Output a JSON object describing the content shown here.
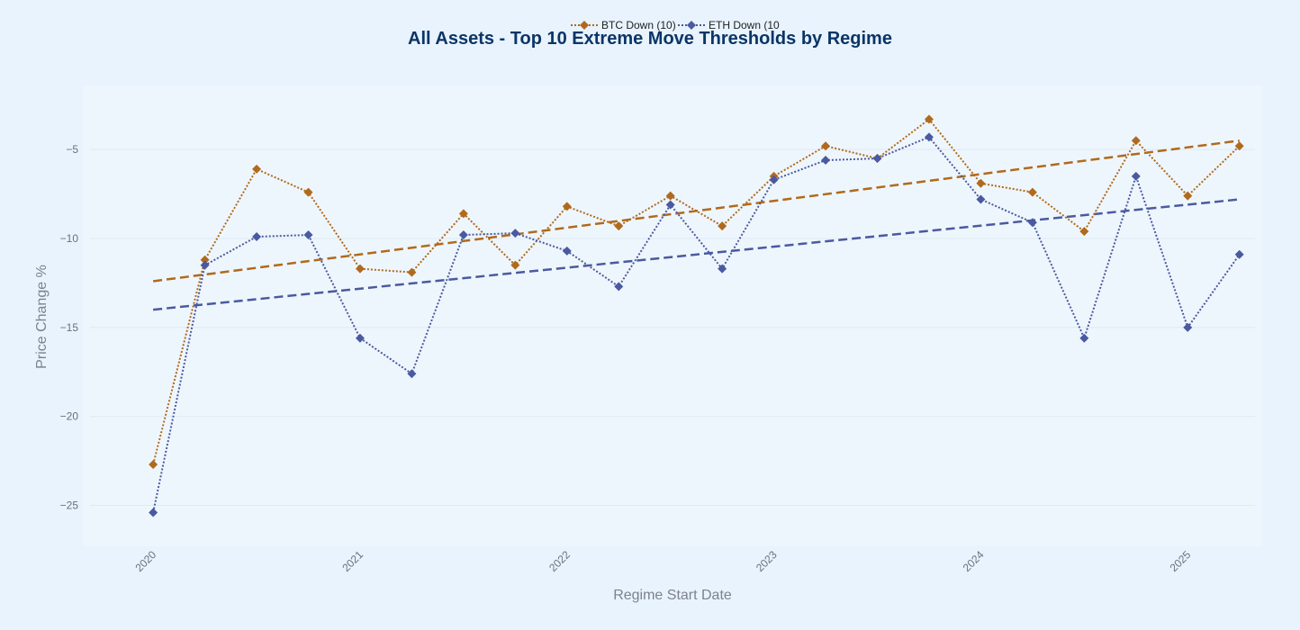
{
  "chart_data": {
    "type": "line",
    "title": "All Assets - Top 10 Extreme Move Thresholds by Regime",
    "xlabel": "Regime Start Date",
    "ylabel": "Price Change %",
    "xlim": [
      2019.66,
      2025.36
    ],
    "ylim": [
      -27.3,
      -1.4
    ],
    "x_ticks": [
      2020,
      2021,
      2022,
      2023,
      2024,
      2025
    ],
    "y_ticks": [
      -5,
      -10,
      -15,
      -20,
      -25
    ],
    "y_tick_labels": [
      "−5",
      "−10",
      "−15",
      "−20",
      "−25"
    ],
    "legend_position": "top-center",
    "grid": true,
    "x": [
      2020.0,
      2020.25,
      2020.5,
      2020.75,
      2021.0,
      2021.25,
      2021.5,
      2021.75,
      2022.0,
      2022.25,
      2022.5,
      2022.75,
      2023.0,
      2023.25,
      2023.5,
      2023.75,
      2024.0,
      2024.25,
      2024.5,
      2024.75,
      2025.0,
      2025.25
    ],
    "series": [
      {
        "name": "BTC Down (10)",
        "color": "#b06a1c",
        "marker": "diamond",
        "values": [
          -22.7,
          -11.2,
          -6.1,
          -7.4,
          -11.7,
          -11.9,
          -8.6,
          -11.5,
          -8.2,
          -9.3,
          -7.6,
          -9.3,
          -6.5,
          -4.8,
          -5.5,
          -3.3,
          -6.9,
          -7.4,
          -9.6,
          -4.5,
          -7.6,
          -4.8
        ],
        "trend": [
          -12.4,
          -4.5
        ]
      },
      {
        "name": "ETH Down (10",
        "color": "#4a5aa0",
        "marker": "diamond",
        "values": [
          -25.4,
          -11.5,
          -9.9,
          -9.8,
          -15.6,
          -17.6,
          -9.8,
          -9.7,
          -10.7,
          -12.7,
          -8.1,
          -11.7,
          -6.7,
          -5.6,
          -5.5,
          -4.3,
          -7.8,
          -9.1,
          -15.6,
          -6.5,
          -15.0,
          -10.9
        ],
        "trend": [
          -14.0,
          -7.8
        ]
      }
    ]
  }
}
